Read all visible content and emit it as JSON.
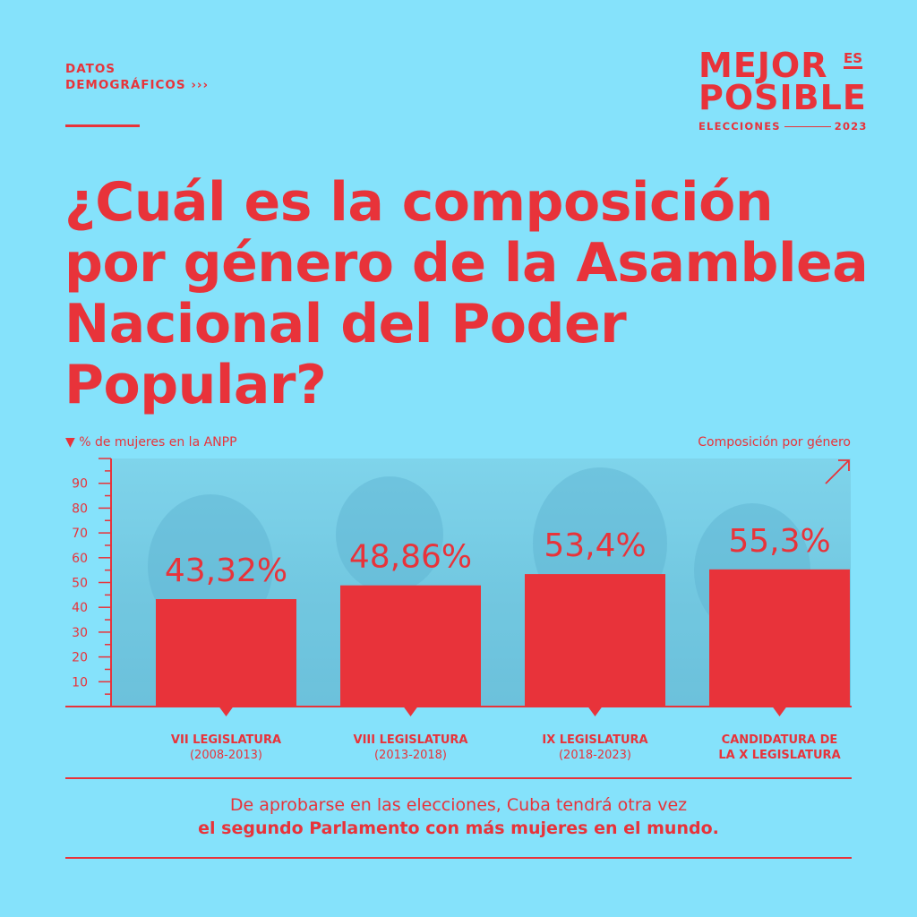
{
  "kicker": {
    "line1": "DATOS",
    "line2": "DEMOGRÁFICOS ›››"
  },
  "logo": {
    "line1": "MEJOR",
    "line2": "POSIBLE",
    "es": "ES",
    "footer_left": "ELECCIONES",
    "footer_right": "2023"
  },
  "title": "¿Cuál es la composición por género de la Asamblea Nacional del Poder Popular?",
  "chart_subtitle_left": "▼  % de mujeres en la ANPP",
  "chart_subtitle_right": "Composición por género",
  "chart_data": {
    "type": "bar",
    "ylim": [
      0,
      100
    ],
    "yticks": [
      10,
      20,
      30,
      40,
      50,
      60,
      70,
      80,
      90
    ],
    "values": [
      43.32,
      48.86,
      53.4,
      55.3
    ],
    "data_labels": [
      "43,32%",
      "48,86%",
      "53,4%",
      "55,3%"
    ],
    "categories": [
      {
        "line1": "VII LEGISLATURA",
        "line2": "(2008-2013)"
      },
      {
        "line1": "VIII LEGISLATURA",
        "line2": "(2013-2018)"
      },
      {
        "line1": "IX LEGISLATURA",
        "line2": "(2018-2023)"
      },
      {
        "line1": "CANDIDATURA DE",
        "line2": "LA X LEGISLATURA"
      }
    ],
    "bar_color": "#e8333a",
    "grid": false
  },
  "footer": {
    "line1": "De aprobarse en las elecciones, Cuba tendrá otra vez",
    "line2": "el segundo Parlamento con más mujeres en el mundo."
  },
  "colors": {
    "background": "#85e2fb",
    "accent": "#e8333a"
  }
}
